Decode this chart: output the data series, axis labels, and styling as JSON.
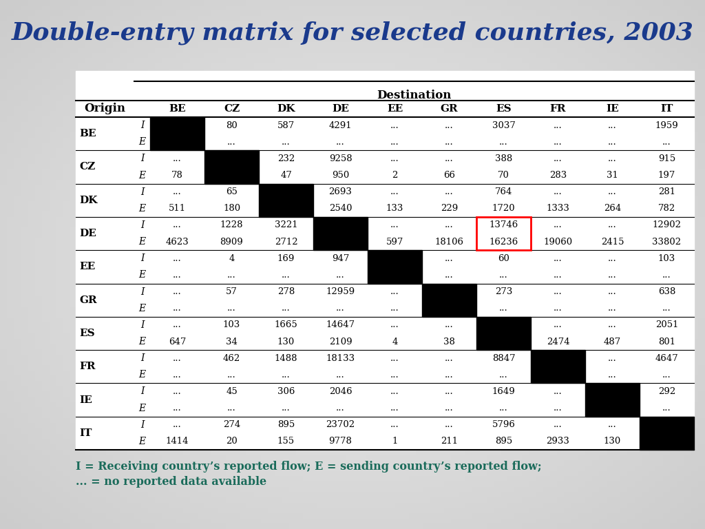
{
  "title": "Double-entry matrix for selected countries, 2003",
  "title_color": "#1a3a8c",
  "bg_gradient": true,
  "table_bg": "#ffffff",
  "countries": [
    "BE",
    "CZ",
    "DK",
    "DE",
    "EE",
    "GR",
    "ES",
    "FR",
    "IE",
    "IT"
  ],
  "col_headers": [
    "BE",
    "CZ",
    "DK",
    "DE",
    "EE",
    "GR",
    "ES",
    "FR",
    "IE",
    "IT"
  ],
  "destination_label": "Destination",
  "origin_label": "Origin",
  "footnote_line1": "I = Receiving country’s reported flow; E = sending country’s reported flow;",
  "footnote_line2": "... = no reported data available",
  "footnote_color": "#1a6b5a",
  "rows": [
    {
      "country": "BE",
      "I": [
        "",
        "80",
        "587",
        "4291",
        "...",
        "...",
        "3037",
        "...",
        "...",
        "1959"
      ],
      "E": [
        "",
        "...",
        "...",
        "...",
        "...",
        "...",
        "...",
        "...",
        "...",
        "..."
      ]
    },
    {
      "country": "CZ",
      "I": [
        "...",
        "",
        "232",
        "9258",
        "...",
        "...",
        "388",
        "...",
        "...",
        "915"
      ],
      "E": [
        "78",
        "",
        "47",
        "950",
        "2",
        "66",
        "70",
        "283",
        "31",
        "197"
      ]
    },
    {
      "country": "DK",
      "I": [
        "...",
        "65",
        "",
        "2693",
        "...",
        "...",
        "764",
        "...",
        "...",
        "281"
      ],
      "E": [
        "511",
        "180",
        "",
        "2540",
        "133",
        "229",
        "1720",
        "1333",
        "264",
        "782"
      ]
    },
    {
      "country": "DE",
      "I": [
        "...",
        "1228",
        "3221",
        "",
        "...",
        "...",
        "13746",
        "...",
        "...",
        "12902"
      ],
      "E": [
        "4623",
        "8909",
        "2712",
        "",
        "597",
        "18106",
        "16236",
        "19060",
        "2415",
        "33802"
      ]
    },
    {
      "country": "EE",
      "I": [
        "...",
        "4",
        "169",
        "947",
        "",
        "...",
        "60",
        "...",
        "...",
        "103"
      ],
      "E": [
        "...",
        "...",
        "...",
        "...",
        "",
        "...",
        "...",
        "...",
        "...",
        "..."
      ]
    },
    {
      "country": "GR",
      "I": [
        "...",
        "57",
        "278",
        "12959",
        "...",
        "",
        "273",
        "...",
        "...",
        "638"
      ],
      "E": [
        "...",
        "...",
        "...",
        "...",
        "...",
        "",
        "...",
        "...",
        "...",
        "..."
      ]
    },
    {
      "country": "ES",
      "I": [
        "...",
        "103",
        "1665",
        "14647",
        "...",
        "...",
        "",
        "...",
        "...",
        "2051"
      ],
      "E": [
        "647",
        "34",
        "130",
        "2109",
        "4",
        "38",
        "",
        "2474",
        "487",
        "801"
      ]
    },
    {
      "country": "FR",
      "I": [
        "...",
        "462",
        "1488",
        "18133",
        "...",
        "...",
        "8847",
        "",
        "...",
        "4647"
      ],
      "E": [
        "...",
        "...",
        "...",
        "...",
        "...",
        "...",
        "...",
        "",
        "...",
        "..."
      ]
    },
    {
      "country": "IE",
      "I": [
        "...",
        "45",
        "306",
        "2046",
        "...",
        "...",
        "1649",
        "...",
        "",
        "292"
      ],
      "E": [
        "...",
        "...",
        "...",
        "...",
        "...",
        "...",
        "...",
        "...",
        "",
        "..."
      ]
    },
    {
      "country": "IT",
      "I": [
        "...",
        "274",
        "895",
        "23702",
        "...",
        "...",
        "5796",
        "...",
        "...",
        ""
      ],
      "E": [
        "1414",
        "20",
        "155",
        "9778",
        "1",
        "211",
        "895",
        "2933",
        "130",
        ""
      ]
    }
  ],
  "highlight_row": 3,
  "highlight_col": 6
}
